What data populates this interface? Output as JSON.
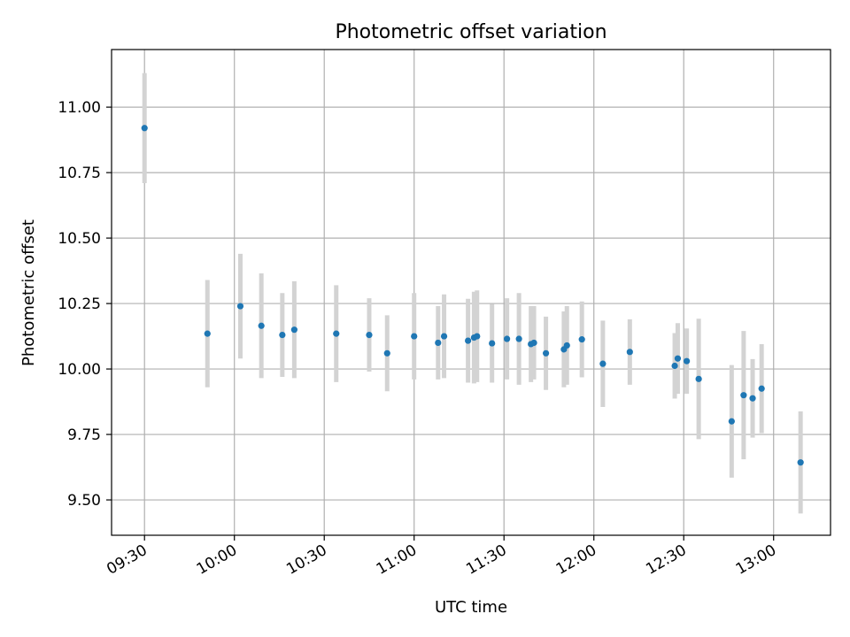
{
  "chart_data": {
    "type": "scatter",
    "title": "Photometric offset variation",
    "xlabel": "UTC time",
    "ylabel": "Photometric offset",
    "xlim": [
      "09:19",
      "13:19"
    ],
    "ylim": [
      9.365,
      11.22
    ],
    "grid": true,
    "colors": {
      "point": "#1f77b4",
      "errorbar": "#d3d3d3"
    },
    "x_ticks": [
      "09:30",
      "10:00",
      "10:30",
      "11:00",
      "11:30",
      "12:00",
      "12:30",
      "13:00"
    ],
    "y_ticks": [
      "9.50",
      "9.75",
      "10.00",
      "10.25",
      "10.50",
      "10.75",
      "11.00"
    ],
    "series": [
      {
        "error_type": "symmetric",
        "points": [
          {
            "x": "09:30",
            "y": 10.92,
            "err": 0.21
          },
          {
            "x": "09:51",
            "y": 10.135,
            "err": 0.205
          },
          {
            "x": "10:02",
            "y": 10.24,
            "err": 0.2
          },
          {
            "x": "10:09",
            "y": 10.165,
            "err": 0.2
          },
          {
            "x": "10:16",
            "y": 10.13,
            "err": 0.16
          },
          {
            "x": "10:20",
            "y": 10.15,
            "err": 0.185
          },
          {
            "x": "10:34",
            "y": 10.135,
            "err": 0.185
          },
          {
            "x": "10:45",
            "y": 10.13,
            "err": 0.14
          },
          {
            "x": "10:51",
            "y": 10.06,
            "err": 0.145
          },
          {
            "x": "11:00",
            "y": 10.125,
            "err": 0.165
          },
          {
            "x": "11:08",
            "y": 10.1,
            "err": 0.14
          },
          {
            "x": "11:10",
            "y": 10.125,
            "err": 0.16
          },
          {
            "x": "11:18",
            "y": 10.108,
            "err": 0.16
          },
          {
            "x": "11:20",
            "y": 10.12,
            "err": 0.175
          },
          {
            "x": "11:21",
            "y": 10.125,
            "err": 0.175
          },
          {
            "x": "11:26",
            "y": 10.098,
            "err": 0.15
          },
          {
            "x": "11:31",
            "y": 10.115,
            "err": 0.155
          },
          {
            "x": "11:35",
            "y": 10.115,
            "err": 0.175
          },
          {
            "x": "11:39",
            "y": 10.095,
            "err": 0.145
          },
          {
            "x": "11:40",
            "y": 10.1,
            "err": 0.14
          },
          {
            "x": "11:44",
            "y": 10.06,
            "err": 0.14
          },
          {
            "x": "11:50",
            "y": 10.075,
            "err": 0.145
          },
          {
            "x": "11:51",
            "y": 10.09,
            "err": 0.15
          },
          {
            "x": "11:56",
            "y": 10.113,
            "err": 0.145
          },
          {
            "x": "12:03",
            "y": 10.02,
            "err": 0.165
          },
          {
            "x": "12:12",
            "y": 10.065,
            "err": 0.125
          },
          {
            "x": "12:27",
            "y": 10.012,
            "err": 0.125
          },
          {
            "x": "12:28",
            "y": 10.04,
            "err": 0.135
          },
          {
            "x": "12:31",
            "y": 10.03,
            "err": 0.125
          },
          {
            "x": "12:35",
            "y": 9.962,
            "err": 0.23
          },
          {
            "x": "12:46",
            "y": 9.8,
            "err": 0.215
          },
          {
            "x": "12:50",
            "y": 9.9,
            "err": 0.245
          },
          {
            "x": "12:53",
            "y": 9.888,
            "err": 0.15
          },
          {
            "x": "12:56",
            "y": 9.925,
            "err": 0.17
          },
          {
            "x": "13:09",
            "y": 9.643,
            "err": 0.195
          }
        ]
      }
    ]
  }
}
